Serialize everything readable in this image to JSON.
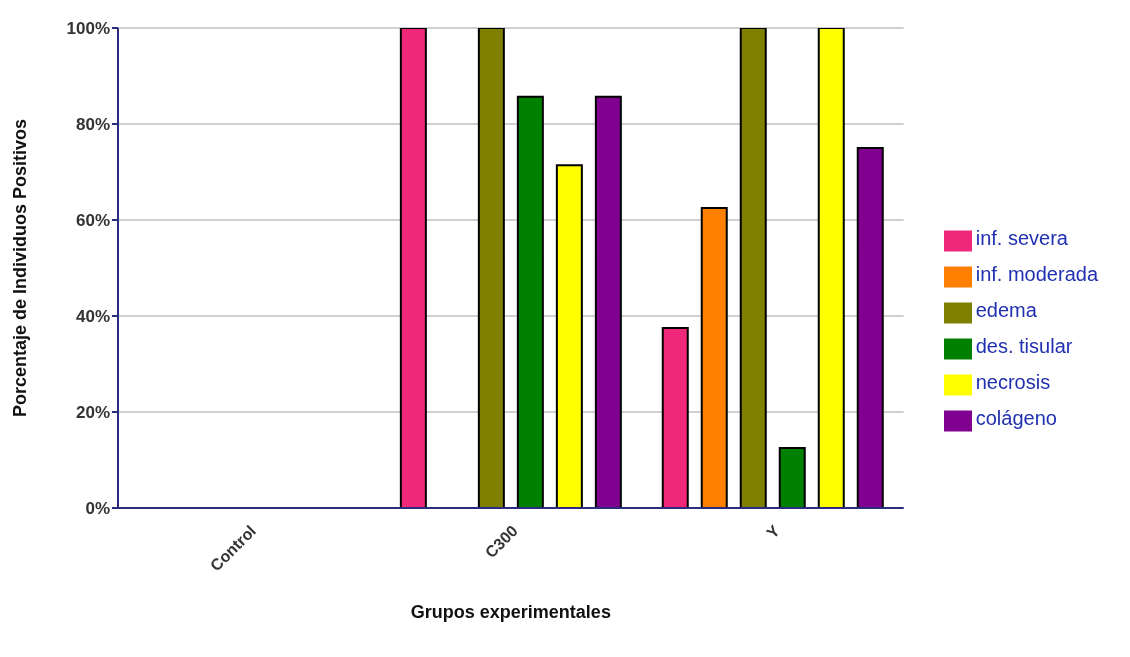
{
  "chart_data": {
    "type": "bar",
    "xlabel": "Grupos experimentales",
    "ylabel": "Porcentaje de Individuos Positivos",
    "categories": [
      "Control",
      "C300",
      "Y"
    ],
    "series": [
      {
        "name": "inf. severa",
        "color": "#f0287a",
        "values": [
          0,
          100,
          37.5
        ]
      },
      {
        "name": "inf. moderada",
        "color": "#ff8000",
        "values": [
          0,
          0,
          62.5
        ]
      },
      {
        "name": "edema",
        "color": "#808000",
        "values": [
          0,
          100,
          100
        ]
      },
      {
        "name": "des. tisular",
        "color": "#008000",
        "values": [
          0,
          85.7,
          12.5
        ]
      },
      {
        "name": "necrosis",
        "color": "#ffff00",
        "values": [
          0,
          71.4,
          100
        ]
      },
      {
        "name": "colágeno",
        "color": "#800090",
        "values": [
          0,
          85.7,
          75
        ]
      }
    ],
    "ylim": [
      0,
      100
    ],
    "yticks": [
      {
        "value": 0,
        "label": "0%"
      },
      {
        "value": 20,
        "label": "20%"
      },
      {
        "value": 40,
        "label": "40%"
      },
      {
        "value": 60,
        "label": "60%"
      },
      {
        "value": 80,
        "label": "80%"
      },
      {
        "value": 100,
        "label": "100%"
      }
    ],
    "grid": "y",
    "legend": "right"
  }
}
